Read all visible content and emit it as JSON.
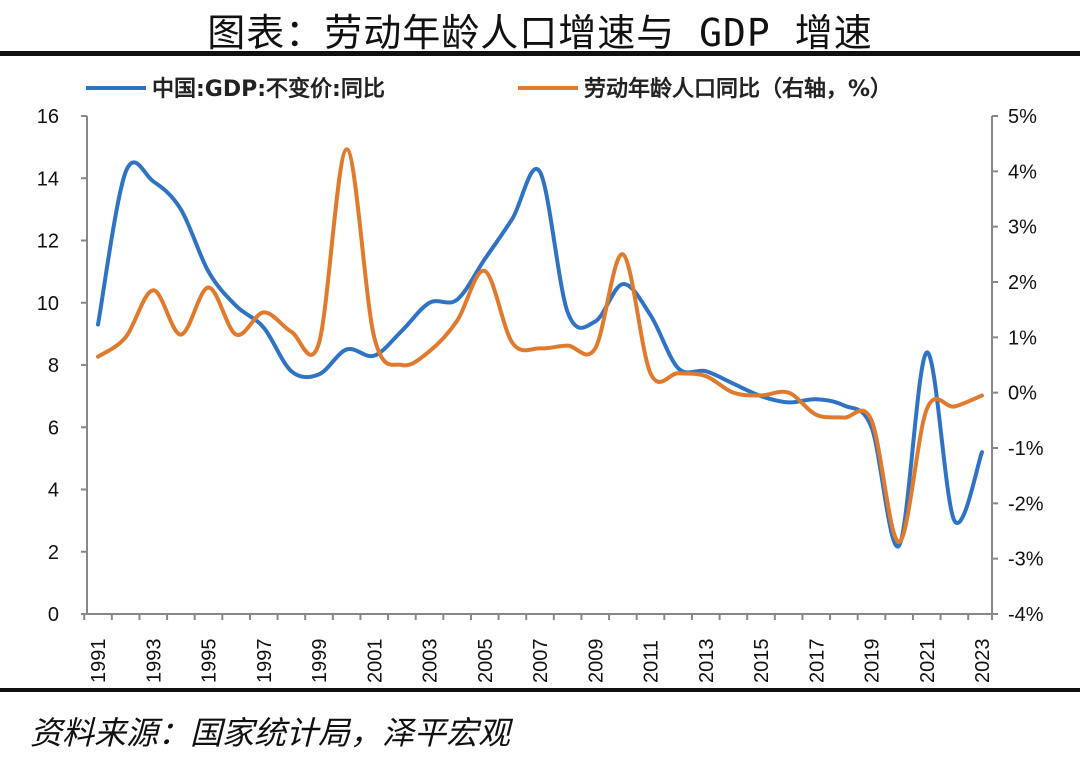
{
  "title": "图表：劳动年龄人口增速与 GDP 增速",
  "source": "资料来源：国家统计局，泽平宏观",
  "chart_data": {
    "type": "line",
    "title": "",
    "x": [
      1991,
      1992,
      1993,
      1994,
      1995,
      1996,
      1997,
      1998,
      1999,
      2000,
      2001,
      2002,
      2003,
      2004,
      2005,
      2006,
      2007,
      2008,
      2009,
      2010,
      2011,
      2012,
      2013,
      2014,
      2015,
      2016,
      2017,
      2018,
      2019,
      2020,
      2021,
      2022,
      2023
    ],
    "x_tick_labels": [
      "1991",
      "1993",
      "1995",
      "1997",
      "1999",
      "2001",
      "2003",
      "2005",
      "2007",
      "2009",
      "2011",
      "2013",
      "2015",
      "2017",
      "2019",
      "2021",
      "2023"
    ],
    "y_left": {
      "range": [
        0,
        16
      ],
      "ticks": [
        "0",
        "2",
        "4",
        "6",
        "8",
        "10",
        "12",
        "14",
        "16"
      ]
    },
    "y_right": {
      "range": [
        -4,
        5
      ],
      "unit": "%",
      "ticks": [
        "-4%",
        "-3%",
        "-2%",
        "-1%",
        "0%",
        "1%",
        "2%",
        "3%",
        "4%",
        "5%"
      ]
    },
    "grid": false,
    "legend_position": "top",
    "series": [
      {
        "name": "中国:GDP:不变价:同比",
        "axis": "left",
        "color": "#2f73c4",
        "values": [
          9.3,
          14.2,
          13.9,
          13.0,
          11.0,
          9.9,
          9.2,
          7.8,
          7.7,
          8.5,
          8.3,
          9.1,
          10.0,
          10.1,
          11.4,
          12.7,
          14.2,
          9.7,
          9.4,
          10.6,
          9.6,
          7.9,
          7.8,
          7.4,
          7.0,
          6.8,
          6.9,
          6.7,
          6.0,
          2.2,
          8.4,
          3.0,
          5.2
        ]
      },
      {
        "name": "劳动年龄人口同比（右轴，%）",
        "axis": "right",
        "color": "#e07a2c",
        "values": [
          0.65,
          1.0,
          1.85,
          1.05,
          1.9,
          1.05,
          1.45,
          1.1,
          0.9,
          4.4,
          1.0,
          0.5,
          0.75,
          1.3,
          2.2,
          0.9,
          0.8,
          0.85,
          0.8,
          2.5,
          0.35,
          0.35,
          0.3,
          0.0,
          -0.05,
          0.0,
          -0.4,
          -0.45,
          -0.5,
          -2.7,
          -0.3,
          -0.25,
          -0.05
        ]
      }
    ]
  }
}
